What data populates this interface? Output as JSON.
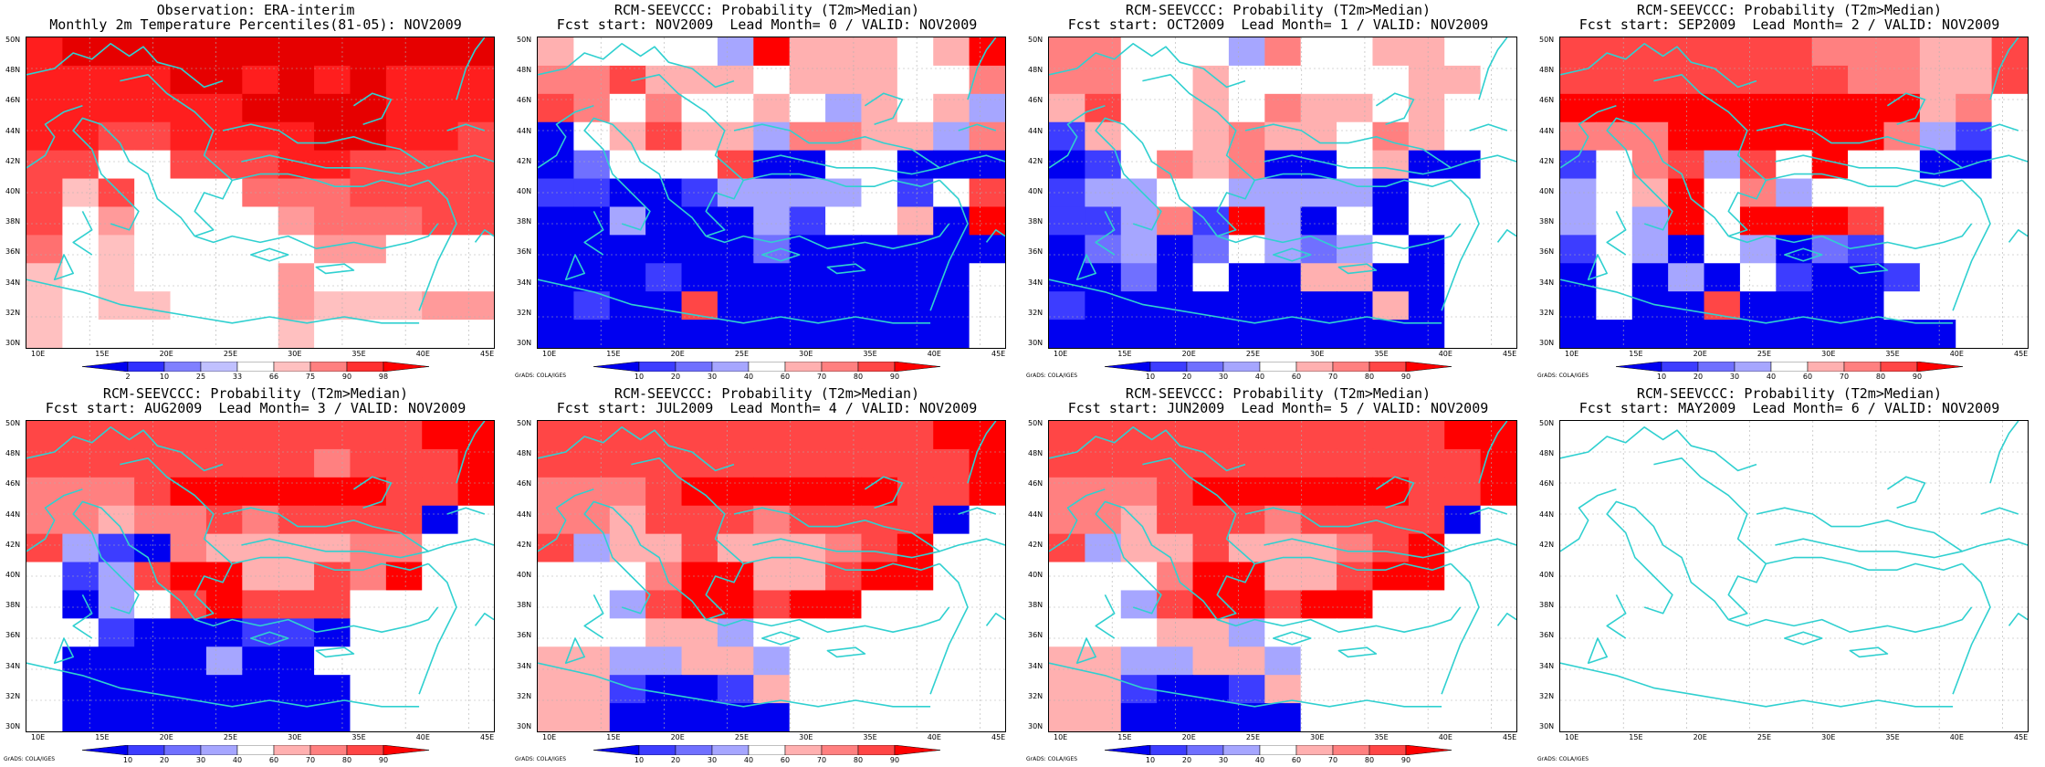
{
  "colors": {
    "coast": "#30d0d0",
    "grid": "#b0b0b0",
    "red_scale": [
      "#ffffff",
      "#ffc0c0",
      "#ff9a9a",
      "#ff7070",
      "#ff4848",
      "#ff1e1e",
      "#e60000"
    ],
    "prob_scale": [
      "#0000f0",
      "#3d3dff",
      "#7070ff",
      "#a6a6ff",
      "#ffffff",
      "#ffb0b0",
      "#ff8080",
      "#ff4646",
      "#ff0000"
    ]
  },
  "lat_labels": [
    "50N",
    "48N",
    "46N",
    "44N",
    "42N",
    "40N",
    "38N",
    "36N",
    "34N",
    "32N",
    "30N"
  ],
  "lon_labels": [
    "10E",
    "15E",
    "20E",
    "25E",
    "30E",
    "35E",
    "40E",
    "45E"
  ],
  "obs_colorbar_ticks": [
    "2",
    "10",
    "25",
    "33",
    "66",
    "75",
    "90",
    "98"
  ],
  "prob_colorbar_ticks": [
    "10",
    "20",
    "30",
    "40",
    "60",
    "70",
    "80",
    "90"
  ],
  "credit": "GrADS: COLA/IGES",
  "panels": [
    {
      "title1": "Observation: ERA-interim",
      "title2": "Monthly 2m Temperature Percentiles(81-05): NOV2009",
      "kind": "obs",
      "credit": false,
      "grid": [
        "5666666666666",
        "5555665656555",
        "5555556666555",
        "5544555566554",
        "4400444554444",
        "4140003334444",
        "4020000233344",
        "3010000022000",
        "1010000200000",
        "1011000211122",
        "1000000100000"
      ]
    },
    {
      "title1": "RCM-SEEVCCC: Probability (T2m>Median)",
      "title2": "Fcst start: NOV2009  Lead Month= 0 / VALID: NOV2009",
      "kind": "prob",
      "credit": true,
      "grid": [
        "5444438555458",
        "6675554555446",
        "7646445435453",
        "0457553665536",
        "0244470044000",
        "1100133334147",
        "0030003144508",
        "0000002000000",
        "0001000000004",
        "0100700000004",
        "0000000000004"
      ]
    },
    {
      "title1": "RCM-SEEVCCC: Probability (T2m>Median)",
      "title2": "Fcst start: OCT2009  Lead Month= 1 / VALID: NOV2009",
      "kind": "prob",
      "credit": true,
      "grid": [
        "6644436445544",
        "6644544444554",
        "5744546554544",
        "1544565546544",
        "0146560045004",
        "1334433330444",
        "1136183040444",
        "0230243234044",
        "0020400550044",
        "1000000005044",
        "0000000000044"
      ]
    },
    {
      "title1": "RCM-SEEVCCC: Probability (T2m>Median)",
      "title2": "Fcst start: SEP2009  Lead Month= 2 / VALID: NOV2009",
      "kind": "prob",
      "credit": true,
      "grid": [
        "7777777666557",
        "7777777766557",
        "8888888888564",
        "6668888886314",
        "1467374844004",
        "3458463444444",
        "3438488874444",
        "1430430214444",
        "0403041001444",
        "0400700004444",
        "0000000000044"
      ]
    },
    {
      "title1": "RCM-SEEVCCC: Probability (T2m>Median)",
      "title2": "Fcst start: AUG2009  Lead Month= 3 / VALID: NOV2009",
      "kind": "prob",
      "credit": true,
      "grid": [
        "7777777777788",
        "7777777767778",
        "6667888888778",
        "6656676777704",
        "7310655556644",
        "4137885576844",
        "4034787774444",
        "4410001104444",
        "4000030044444",
        "4000000004444",
        "4000000004444"
      ]
    },
    {
      "title1": "RCM-SEEVCCC: Probability (T2m>Median)",
      "title2": "Fcst start: JUL2009  Lead Month= 4 / VALID: NOV2009",
      "kind": "prob",
      "credit": true,
      "grid": [
        "7777777777788",
        "7777777777778",
        "6667888888778",
        "6657776777704",
        "7355755567844",
        "4446885578844",
        "4437887884444",
        "4445534444444",
        "5533553444444",
        "5510015444444",
        "5500000444444"
      ]
    },
    {
      "title1": "RCM-SEEVCCC: Probability (T2m>Median)",
      "title2": "Fcst start: JUN2009  Lead Month= 5 / VALID: NOV2009",
      "kind": "prob",
      "credit": true,
      "grid": [
        "7777777777788",
        "7777777777778",
        "6667888888778",
        "6657776777704",
        "7355755567844",
        "4446885578844",
        "4437887884444",
        "4445534444444",
        "5533553444444",
        "5510015444444",
        "5500000444444"
      ]
    },
    {
      "title1": "RCM-SEEVCCC: Probability (T2m>Median)",
      "title2": "Fcst start: MAY2009  Lead Month= 6 / VALID: NOV2009",
      "kind": "empty",
      "credit": true,
      "grid": []
    }
  ]
}
